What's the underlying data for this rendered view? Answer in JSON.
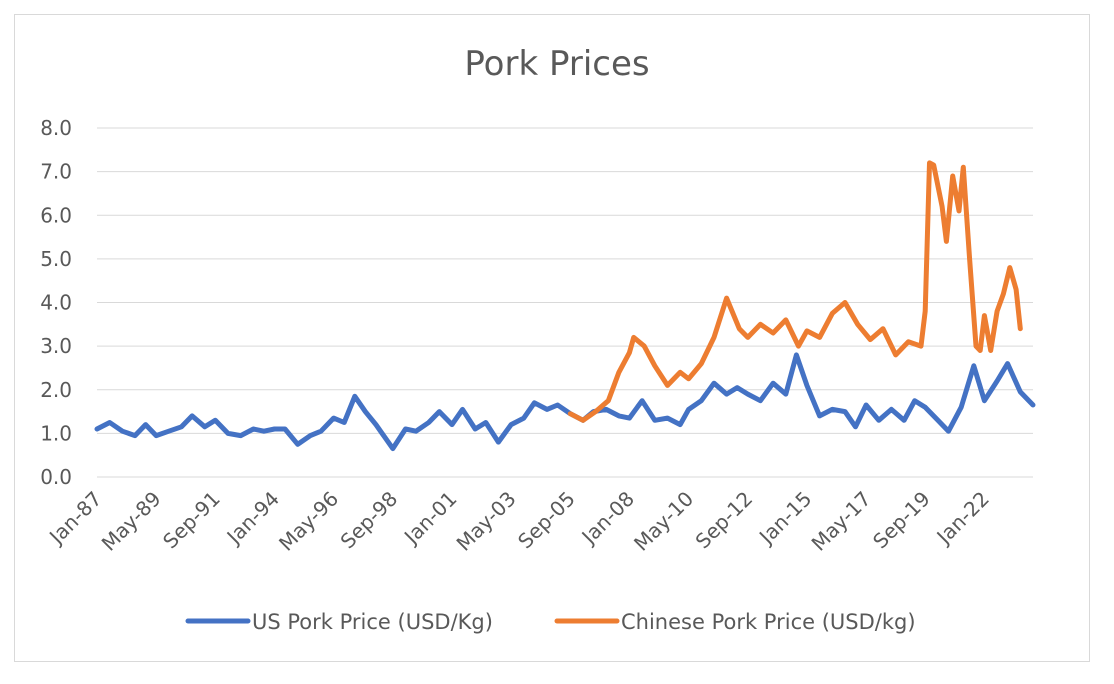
{
  "chart_data": {
    "type": "line",
    "title": "Pork Prices",
    "xlabel": "",
    "ylabel": "",
    "ylim": [
      0,
      8
    ],
    "y_ticks": [
      "0.0",
      "1.0",
      "2.0",
      "3.0",
      "4.0",
      "5.0",
      "6.0",
      "7.0",
      "8.0"
    ],
    "x_ticks": [
      "Jan-87",
      "May-89",
      "Sep-91",
      "Jan-94",
      "May-96",
      "Sep-98",
      "Jan-01",
      "May-03",
      "Sep-05",
      "Jan-08",
      "May-10",
      "Sep-12",
      "Jan-15",
      "May-17",
      "Sep-19",
      "Jan-22"
    ],
    "x_range": [
      "Jan-87",
      "Dec-23"
    ],
    "grid": "horizontal",
    "legend_position": "bottom",
    "series": [
      {
        "name": "US Pork Price (USD/Kg)",
        "color": "#4472c4",
        "points": [
          [
            "Jan-87",
            1.1
          ],
          [
            "Jul-87",
            1.25
          ],
          [
            "Jan-88",
            1.05
          ],
          [
            "Jul-88",
            0.95
          ],
          [
            "Dec-88",
            1.2
          ],
          [
            "May-89",
            0.95
          ],
          [
            "Nov-89",
            1.05
          ],
          [
            "May-90",
            1.15
          ],
          [
            "Oct-90",
            1.4
          ],
          [
            "Apr-91",
            1.15
          ],
          [
            "Sep-91",
            1.3
          ],
          [
            "Mar-92",
            1.0
          ],
          [
            "Sep-92",
            0.95
          ],
          [
            "Mar-93",
            1.1
          ],
          [
            "Aug-93",
            1.05
          ],
          [
            "Jan-94",
            1.1
          ],
          [
            "Jun-94",
            1.1
          ],
          [
            "Dec-94",
            0.75
          ],
          [
            "Jun-95",
            0.95
          ],
          [
            "Nov-95",
            1.05
          ],
          [
            "May-96",
            1.35
          ],
          [
            "Oct-96",
            1.25
          ],
          [
            "Mar-97",
            1.85
          ],
          [
            "Aug-97",
            1.5
          ],
          [
            "Jan-98",
            1.2
          ],
          [
            "Sep-98",
            0.65
          ],
          [
            "Mar-99",
            1.1
          ],
          [
            "Aug-99",
            1.05
          ],
          [
            "Feb-00",
            1.25
          ],
          [
            "Jul-00",
            1.5
          ],
          [
            "Jan-01",
            1.2
          ],
          [
            "Jun-01",
            1.55
          ],
          [
            "Dec-01",
            1.1
          ],
          [
            "May-02",
            1.25
          ],
          [
            "Nov-02",
            0.8
          ],
          [
            "May-03",
            1.2
          ],
          [
            "Nov-03",
            1.35
          ],
          [
            "Apr-04",
            1.7
          ],
          [
            "Oct-04",
            1.55
          ],
          [
            "Mar-05",
            1.65
          ],
          [
            "Sep-05",
            1.45
          ],
          [
            "Mar-06",
            1.3
          ],
          [
            "Aug-06",
            1.5
          ],
          [
            "Feb-07",
            1.55
          ],
          [
            "Aug-07",
            1.4
          ],
          [
            "Jan-08",
            1.35
          ],
          [
            "Jul-08",
            1.75
          ],
          [
            "Jan-09",
            1.3
          ],
          [
            "Jul-09",
            1.35
          ],
          [
            "Jan-10",
            1.2
          ],
          [
            "May-10",
            1.55
          ],
          [
            "Nov-10",
            1.75
          ],
          [
            "May-11",
            2.15
          ],
          [
            "Nov-11",
            1.9
          ],
          [
            "Apr-12",
            2.05
          ],
          [
            "Sep-12",
            1.9
          ],
          [
            "Mar-13",
            1.75
          ],
          [
            "Sep-13",
            2.15
          ],
          [
            "Mar-14",
            1.9
          ],
          [
            "Aug-14",
            2.8
          ],
          [
            "Jan-15",
            2.1
          ],
          [
            "Jul-15",
            1.4
          ],
          [
            "Jan-16",
            1.55
          ],
          [
            "Jul-16",
            1.5
          ],
          [
            "Dec-16",
            1.15
          ],
          [
            "May-17",
            1.65
          ],
          [
            "Nov-17",
            1.3
          ],
          [
            "May-18",
            1.55
          ],
          [
            "Nov-18",
            1.3
          ],
          [
            "Apr-19",
            1.75
          ],
          [
            "Sep-19",
            1.6
          ],
          [
            "Mar-20",
            1.3
          ],
          [
            "Aug-20",
            1.05
          ],
          [
            "Feb-21",
            1.6
          ],
          [
            "Aug-21",
            2.55
          ],
          [
            "Jan-22",
            1.75
          ],
          [
            "Jul-22",
            2.2
          ],
          [
            "Dec-22",
            2.6
          ],
          [
            "Jun-23",
            1.95
          ],
          [
            "Dec-23",
            1.65
          ]
        ]
      },
      {
        "name": "Chinese Pork Price (USD/kg)",
        "color": "#ed7d31",
        "points": [
          [
            "Sep-05",
            1.45
          ],
          [
            "Mar-06",
            1.3
          ],
          [
            "Sep-06",
            1.5
          ],
          [
            "Mar-07",
            1.75
          ],
          [
            "Aug-07",
            2.4
          ],
          [
            "Jan-08",
            2.85
          ],
          [
            "Mar-08",
            3.2
          ],
          [
            "Aug-08",
            3.0
          ],
          [
            "Jan-09",
            2.55
          ],
          [
            "Jul-09",
            2.1
          ],
          [
            "Jan-10",
            2.4
          ],
          [
            "May-10",
            2.25
          ],
          [
            "Nov-10",
            2.6
          ],
          [
            "May-11",
            3.2
          ],
          [
            "Nov-11",
            4.1
          ],
          [
            "May-12",
            3.4
          ],
          [
            "Sep-12",
            3.2
          ],
          [
            "Mar-13",
            3.5
          ],
          [
            "Sep-13",
            3.3
          ],
          [
            "Mar-14",
            3.6
          ],
          [
            "Sep-14",
            3.0
          ],
          [
            "Jan-15",
            3.35
          ],
          [
            "Jul-15",
            3.2
          ],
          [
            "Jan-16",
            3.75
          ],
          [
            "Jul-16",
            4.0
          ],
          [
            "Jan-17",
            3.5
          ],
          [
            "Jul-17",
            3.15
          ],
          [
            "Jan-18",
            3.4
          ],
          [
            "Jul-18",
            2.8
          ],
          [
            "Jan-19",
            3.1
          ],
          [
            "Jul-19",
            3.0
          ],
          [
            "Sep-19",
            3.8
          ],
          [
            "Nov-19",
            7.2
          ],
          [
            "Jan-20",
            7.15
          ],
          [
            "May-20",
            6.2
          ],
          [
            "Jul-20",
            5.4
          ],
          [
            "Oct-20",
            6.9
          ],
          [
            "Jan-21",
            6.1
          ],
          [
            "Mar-21",
            7.1
          ],
          [
            "Jun-21",
            5.0
          ],
          [
            "Sep-21",
            3.0
          ],
          [
            "Nov-21",
            2.9
          ],
          [
            "Jan-22",
            3.7
          ],
          [
            "Apr-22",
            2.9
          ],
          [
            "Jul-22",
            3.8
          ],
          [
            "Oct-22",
            4.2
          ],
          [
            "Jan-23",
            4.8
          ],
          [
            "Apr-23",
            4.3
          ],
          [
            "Jun-23",
            3.4
          ]
        ]
      }
    ]
  }
}
